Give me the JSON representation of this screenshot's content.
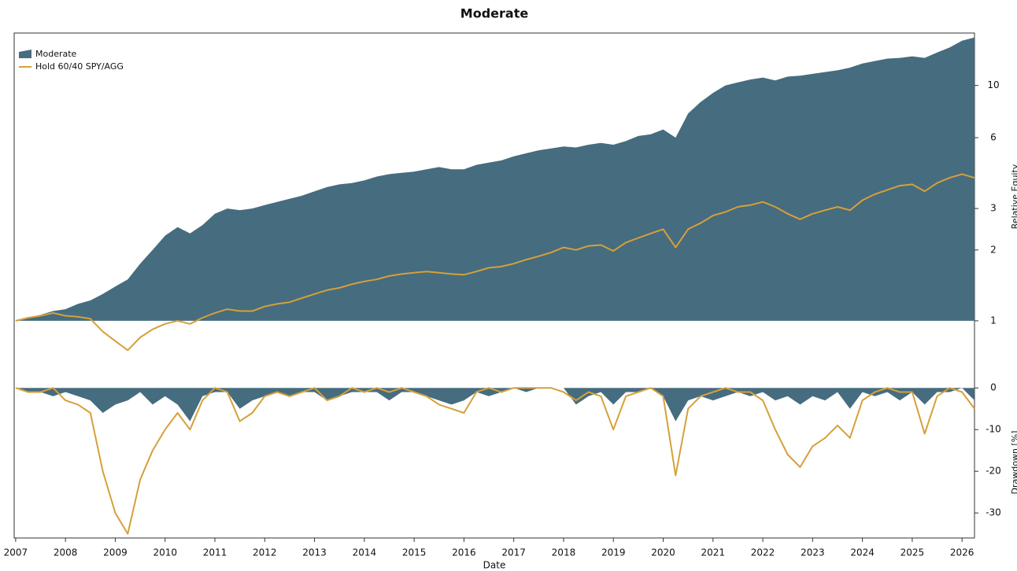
{
  "chart_data": [
    {
      "type": "area",
      "title": "Moderate",
      "y_label": "Relative Equity",
      "log_scale": true,
      "legend": "upper left",
      "x": [
        2007,
        2007.25,
        2007.5,
        2007.75,
        2008,
        2008.25,
        2008.5,
        2008.75,
        2009,
        2009.25,
        2009.5,
        2009.75,
        2010,
        2010.25,
        2010.5,
        2010.75,
        2011,
        2011.25,
        2011.5,
        2011.75,
        2012,
        2012.25,
        2012.5,
        2012.75,
        2013,
        2013.25,
        2013.5,
        2013.75,
        2014,
        2014.25,
        2014.5,
        2014.75,
        2015,
        2015.25,
        2015.5,
        2015.75,
        2016,
        2016.25,
        2016.5,
        2016.75,
        2017,
        2017.25,
        2017.5,
        2017.75,
        2018,
        2018.25,
        2018.5,
        2018.75,
        2019,
        2019.25,
        2019.5,
        2019.75,
        2020,
        2020.25,
        2020.5,
        2020.75,
        2021,
        2021.25,
        2021.5,
        2021.75,
        2022,
        2022.25,
        2022.5,
        2022.75,
        2023,
        2023.25,
        2023.5,
        2023.75,
        2024,
        2024.25,
        2024.5,
        2024.75,
        2025,
        2025.25,
        2025.5,
        2025.75,
        2026,
        2026.25
      ],
      "xlim": [
        2006.97,
        2026.25
      ],
      "ylim": [
        0.62,
        16.7
      ],
      "yticks": [
        1,
        2,
        3,
        6,
        10
      ],
      "series": [
        {
          "name": "Moderate",
          "kind": "area",
          "color": "#466c7f",
          "values": [
            1.0,
            1.03,
            1.06,
            1.1,
            1.12,
            1.18,
            1.22,
            1.3,
            1.4,
            1.5,
            1.75,
            2.0,
            2.3,
            2.5,
            2.35,
            2.55,
            2.85,
            3.0,
            2.95,
            3.0,
            3.1,
            3.2,
            3.3,
            3.4,
            3.55,
            3.7,
            3.8,
            3.85,
            3.95,
            4.1,
            4.2,
            4.25,
            4.3,
            4.4,
            4.5,
            4.4,
            4.4,
            4.6,
            4.7,
            4.8,
            5.0,
            5.15,
            5.3,
            5.4,
            5.5,
            5.45,
            5.6,
            5.7,
            5.6,
            5.8,
            6.1,
            6.2,
            6.5,
            6.0,
            7.6,
            8.5,
            9.3,
            10.0,
            10.3,
            10.6,
            10.8,
            10.5,
            10.9,
            11.0,
            11.2,
            11.4,
            11.6,
            11.9,
            12.4,
            12.7,
            13.0,
            13.1,
            13.3,
            13.1,
            13.8,
            14.5,
            15.5,
            16.0
          ]
        },
        {
          "name": "Hold 60/40 SPY/AGG",
          "kind": "line",
          "color": "#d6a03a",
          "values": [
            1.0,
            1.03,
            1.05,
            1.08,
            1.05,
            1.04,
            1.02,
            0.9,
            0.82,
            0.75,
            0.85,
            0.92,
            0.97,
            1.0,
            0.97,
            1.03,
            1.08,
            1.12,
            1.1,
            1.1,
            1.15,
            1.18,
            1.2,
            1.25,
            1.3,
            1.35,
            1.38,
            1.43,
            1.47,
            1.5,
            1.55,
            1.58,
            1.6,
            1.62,
            1.6,
            1.58,
            1.57,
            1.62,
            1.68,
            1.7,
            1.75,
            1.82,
            1.88,
            1.95,
            2.05,
            2.0,
            2.08,
            2.1,
            1.98,
            2.15,
            2.25,
            2.35,
            2.45,
            2.05,
            2.45,
            2.6,
            2.8,
            2.9,
            3.05,
            3.1,
            3.2,
            3.05,
            2.85,
            2.7,
            2.85,
            2.95,
            3.05,
            2.95,
            3.25,
            3.45,
            3.6,
            3.75,
            3.8,
            3.55,
            3.85,
            4.05,
            4.2,
            4.05
          ]
        }
      ]
    },
    {
      "type": "area",
      "x_label": "Date",
      "y_label": "Drawdown [%]",
      "x": [
        2007,
        2007.25,
        2007.5,
        2007.75,
        2008,
        2008.25,
        2008.5,
        2008.75,
        2009,
        2009.25,
        2009.5,
        2009.75,
        2010,
        2010.25,
        2010.5,
        2010.75,
        2011,
        2011.25,
        2011.5,
        2011.75,
        2012,
        2012.25,
        2012.5,
        2012.75,
        2013,
        2013.25,
        2013.5,
        2013.75,
        2014,
        2014.25,
        2014.5,
        2014.75,
        2015,
        2015.25,
        2015.5,
        2015.75,
        2016,
        2016.25,
        2016.5,
        2016.75,
        2017,
        2017.25,
        2017.5,
        2017.75,
        2018,
        2018.25,
        2018.5,
        2018.75,
        2019,
        2019.25,
        2019.5,
        2019.75,
        2020,
        2020.25,
        2020.5,
        2020.75,
        2021,
        2021.25,
        2021.5,
        2021.75,
        2022,
        2022.25,
        2022.5,
        2022.75,
        2023,
        2023.25,
        2023.5,
        2023.75,
        2024,
        2024.25,
        2024.5,
        2024.75,
        2025,
        2025.25,
        2025.5,
        2025.75,
        2026,
        2026.25
      ],
      "xlim": [
        2006.97,
        2026.25
      ],
      "xticks": [
        2007,
        2008,
        2009,
        2010,
        2011,
        2012,
        2013,
        2014,
        2015,
        2016,
        2017,
        2018,
        2019,
        2020,
        2021,
        2022,
        2023,
        2024,
        2025,
        2026
      ],
      "ylim": [
        -36,
        2.5
      ],
      "yticks": [
        0,
        -10,
        -20,
        -30
      ],
      "series": [
        {
          "kind": "area",
          "color": "#466c7f",
          "values": [
            0,
            -1,
            -1,
            -2,
            -1,
            -2,
            -3,
            -6,
            -4,
            -3,
            -1,
            -4,
            -2,
            -4,
            -8,
            -2,
            -1,
            -1,
            -5,
            -3,
            -2,
            -1,
            -2,
            -1,
            -1,
            -3,
            -2,
            -1,
            -1,
            -1,
            -3,
            -1,
            -1,
            -2,
            -3,
            -4,
            -3,
            -1,
            -2,
            -1,
            0,
            -1,
            0,
            0,
            0,
            -4,
            -2,
            -1,
            -4,
            -1,
            -1,
            0,
            -2,
            -8,
            -3,
            -2,
            -3,
            -2,
            -1,
            -2,
            -1,
            -3,
            -2,
            -4,
            -2,
            -3,
            -1,
            -5,
            -1,
            -2,
            -1,
            -3,
            -1,
            -4,
            -1,
            -1,
            0,
            -3
          ]
        },
        {
          "kind": "line",
          "color": "#d6a03a",
          "values": [
            0,
            -1,
            -1,
            0,
            -3,
            -4,
            -6,
            -20,
            -30,
            -35,
            -22,
            -15,
            -10,
            -6,
            -10,
            -3,
            0,
            -1,
            -8,
            -6,
            -2,
            -1,
            -2,
            -1,
            0,
            -3,
            -2,
            0,
            -1,
            0,
            -1,
            0,
            -1,
            -2,
            -4,
            -5,
            -6,
            -1,
            0,
            -1,
            0,
            0,
            0,
            0,
            -1,
            -3,
            -1,
            -2,
            -10,
            -2,
            -1,
            0,
            -2,
            -21,
            -5,
            -2,
            -1,
            0,
            -1,
            -1,
            -3,
            -10,
            -16,
            -19,
            -14,
            -12,
            -9,
            -12,
            -3,
            -1,
            0,
            -1,
            -1,
            -11,
            -2,
            0,
            -1,
            -5
          ]
        }
      ]
    }
  ]
}
